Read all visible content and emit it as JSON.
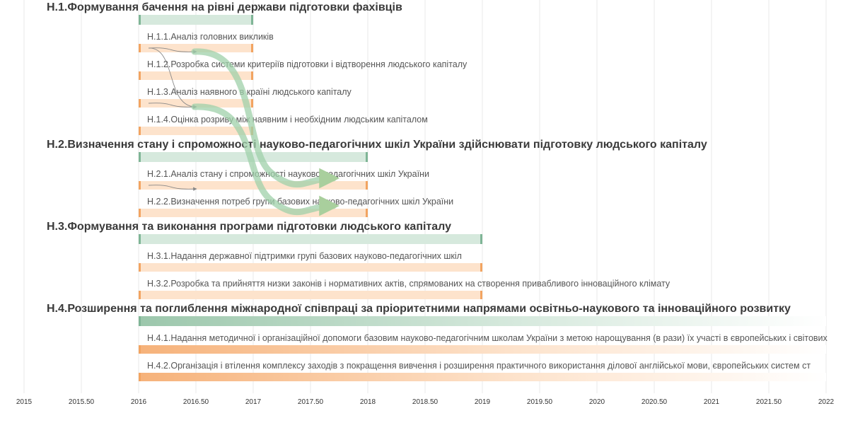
{
  "chart_data": {
    "type": "gantt",
    "xlim": [
      2015,
      2022
    ],
    "x_ticks": [
      "2015",
      "2015.50",
      "2016",
      "2016.50",
      "2017",
      "2017.50",
      "2018",
      "2018.50",
      "2019",
      "2019.50",
      "2020",
      "2020.50",
      "2021",
      "2021.50",
      "2022"
    ],
    "grid": true,
    "colors": {
      "group_bar": "#d6e9dd",
      "group_edge": "#7fb596",
      "task_bar": "#fde3cc",
      "task_edge": "#f2a461",
      "dependency_major": "#9fd0aa",
      "dependency_minor": "#888888"
    },
    "groups": [
      {
        "id": "H.1",
        "title": "Н.1.Формування бачення на рівні держави підготовки фахівців",
        "start": 2016,
        "end": 2017,
        "tasks": [
          {
            "id": "H.1.1",
            "label": "Н.1.1.Аналіз головних викликів",
            "start": 2016,
            "end": 2017
          },
          {
            "id": "H.1.2",
            "label": "Н.1.2.Розробка системи критеріїв підготовки і відтворення людського капіталу",
            "start": 2016,
            "end": 2017
          },
          {
            "id": "H.1.3",
            "label": "Н.1.3.Аналіз наявного в країні людського капіталу",
            "start": 2016,
            "end": 2017
          },
          {
            "id": "H.1.4",
            "label": "Н.1.4.Оцінка розриву між наявним і необхідним людським капіталом",
            "start": 2016,
            "end": 2017
          }
        ]
      },
      {
        "id": "H.2",
        "title": "Н.2.Визначення стану і спроможності науково-педагогічних шкіл України здійснювати підготовку людського капіталу",
        "start": 2016,
        "end": 2018,
        "tasks": [
          {
            "id": "H.2.1",
            "label": "Н.2.1.Аналіз стану і спроможності науково-педагогічних шкіл України",
            "start": 2016,
            "end": 2018
          },
          {
            "id": "H.2.2",
            "label": "Н.2.2.Визначення потреб групи базових науково-педагогічних шкіл України",
            "start": 2016,
            "end": 2018
          }
        ]
      },
      {
        "id": "H.3",
        "title": "Н.3.Формування та виконання програми підготовки людського капіталу",
        "start": 2016,
        "end": 2019,
        "tasks": [
          {
            "id": "H.3.1",
            "label": "Н.3.1.Надання державної підтримки групі базових науково-педагогічних шкіл",
            "start": 2016,
            "end": 2019
          },
          {
            "id": "H.3.2",
            "label": "Н.3.2.Розробка та прийняття низки законів і нормативних актів, спрямованих на створення привабливого інноваційного клімату",
            "start": 2016,
            "end": 2019
          }
        ]
      },
      {
        "id": "H.4",
        "title": "Н.4.Розширення та поглиблення міжнародної співпраці за пріоритетними напрямами освітньо-наукового та інноваційного розвитку",
        "start": 2016,
        "end": 2022,
        "open_end": true,
        "tasks": [
          {
            "id": "H.4.1",
            "label": "Н.4.1.Надання методичної і організаційної допомоги базовим науково-педагогічним школам України з метою нарощування (в рази) їх участі в європейських і світових",
            "start": 2016,
            "end": 2022,
            "open_end": true
          },
          {
            "id": "H.4.2",
            "label": "Н.4.2.Організація і втілення комплексу заходів з покращення вивчення і розширення практичного використання ділової англійської мови, європейських систем ст",
            "start": 2016,
            "end": 2022,
            "open_end": true
          }
        ]
      }
    ],
    "dependencies": [
      {
        "from": "H.1.1",
        "to": "H.1.2",
        "kind": "minor"
      },
      {
        "from": "H.1.1",
        "to": "H.1.4",
        "kind": "minor"
      },
      {
        "from": "H.1.3",
        "to": "H.1.4",
        "kind": "minor"
      },
      {
        "from": "H.2.1",
        "to": "H.2.2",
        "kind": "minor"
      },
      {
        "from": "H.1.2",
        "to": "H.2.1",
        "kind": "major"
      },
      {
        "from": "H.1.4",
        "to": "H.2.2",
        "kind": "major"
      }
    ]
  }
}
